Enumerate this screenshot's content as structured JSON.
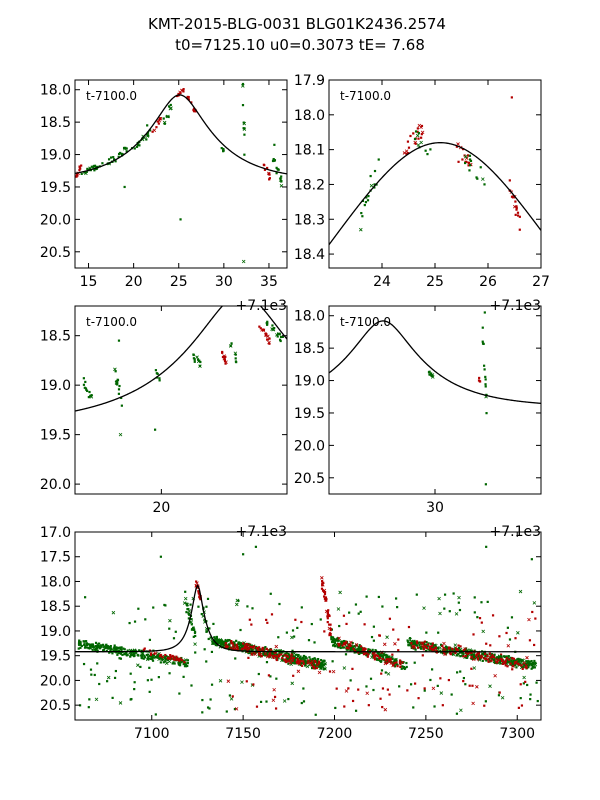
{
  "figure": {
    "title_line1": "KMT-2015-BLG-0031 BLG01K2436.2574",
    "title_line2": "t0=7125.10 u0=0.3073 tE=   7.68",
    "model": {
      "t0": 7125.1,
      "u0": 0.3073,
      "tE": 7.68,
      "base_mag": 19.42,
      "peak_mag": 18.08
    },
    "colors": {
      "red": "#b30000",
      "green": "#006600",
      "line": "#000000",
      "axes": "#000000"
    }
  },
  "chart_data": [
    {
      "name": "panel-top-left",
      "type": "scatter",
      "time_offset": 7100,
      "annotation": "t-7100.0",
      "offset_label": "+7.1e3",
      "xlim": [
        13.5,
        37
      ],
      "ylim": [
        20.75,
        17.85
      ],
      "xticks": [
        15,
        20,
        25,
        30,
        35
      ],
      "xtick_labels": [
        "15",
        "20",
        "25",
        "30",
        "35"
      ],
      "yticks": [
        18.0,
        18.5,
        19.0,
        19.5,
        20.0,
        20.5
      ],
      "ytick_labels": [
        "18.0",
        "18.5",
        "19.0",
        "19.5",
        "20.0",
        "20.5"
      ],
      "show_offset": true,
      "clusters": [
        {
          "x": [
            13.6,
            14.2
          ],
          "mag": [
            19.35,
            19.15
          ],
          "n": 10,
          "color": "red"
        },
        {
          "x": [
            14.0,
            16.8
          ],
          "mag": [
            19.3,
            19.15
          ],
          "n": 26,
          "color": "green"
        },
        {
          "x": [
            17.0,
            19.9
          ],
          "mag": [
            19.15,
            18.85
          ],
          "n": 22,
          "color": "green"
        },
        {
          "x": [
            20.0,
            22.0
          ],
          "mag": [
            18.9,
            18.65
          ],
          "n": 16,
          "color": "green"
        },
        {
          "x": [
            22.0,
            23.0
          ],
          "mag": [
            18.7,
            18.45
          ],
          "n": 10,
          "color": "red"
        },
        {
          "x": [
            23.3,
            24.6
          ],
          "mag": [
            18.5,
            18.15
          ],
          "n": 10,
          "color": "green"
        },
        {
          "x": [
            24.8,
            25.6
          ],
          "mag": [
            18.1,
            18.0
          ],
          "n": 10,
          "color": "red"
        },
        {
          "x": [
            25.8,
            26.9
          ],
          "mag": [
            18.1,
            18.35
          ],
          "n": 12,
          "color": "red"
        },
        {
          "x": [
            29.5,
            30.1
          ],
          "mag": [
            18.85,
            18.95
          ],
          "n": 5,
          "color": "green"
        },
        {
          "x": [
            32.1,
            32.4
          ],
          "mag": [
            18.0,
            19.4
          ],
          "n": 10,
          "color": "green"
        },
        {
          "x": [
            34.3,
            35.2
          ],
          "mag": [
            19.1,
            19.4
          ],
          "n": 10,
          "color": "red"
        },
        {
          "x": [
            35.3,
            36.4
          ],
          "mag": [
            19.0,
            19.4
          ],
          "n": 16,
          "color": "green"
        }
      ],
      "outliers": [
        {
          "x": 21.5,
          "mag": 18.55,
          "color": "green"
        },
        {
          "x": 25.2,
          "mag": 20.0,
          "color": "green"
        },
        {
          "x": 19.0,
          "mag": 19.5,
          "color": "green"
        },
        {
          "x": 32.2,
          "mag": 20.65,
          "color": "green"
        },
        {
          "x": 35.6,
          "mag": 18.85,
          "color": "green"
        }
      ]
    },
    {
      "name": "panel-top-right",
      "type": "scatter",
      "time_offset": 7100,
      "annotation": "t-7100.0",
      "offset_label": "+7.1e3",
      "xlim": [
        23.0,
        27.0
      ],
      "ylim": [
        18.44,
        17.9
      ],
      "xticks": [
        24,
        25,
        26,
        27
      ],
      "xtick_labels": [
        "24",
        "25",
        "26",
        "27"
      ],
      "yticks": [
        17.9,
        18.0,
        18.1,
        18.2,
        18.3,
        18.4
      ],
      "ytick_labels": [
        "17.9",
        "18.0",
        "18.1",
        "18.2",
        "18.3",
        "18.4"
      ],
      "show_offset": true,
      "clusters": [
        {
          "x": [
            23.6,
            23.95
          ],
          "mag": [
            18.3,
            18.15
          ],
          "n": 16,
          "color": "green"
        },
        {
          "x": [
            24.4,
            24.8
          ],
          "mag": [
            18.1,
            18.05
          ],
          "n": 20,
          "color": "red"
        },
        {
          "x": [
            24.6,
            24.95
          ],
          "mag": [
            18.07,
            18.12
          ],
          "n": 10,
          "color": "green"
        },
        {
          "x": [
            25.4,
            25.7
          ],
          "mag": [
            18.1,
            18.15
          ],
          "n": 16,
          "color": "red"
        },
        {
          "x": [
            25.55,
            25.95
          ],
          "mag": [
            18.12,
            18.18
          ],
          "n": 12,
          "color": "green"
        },
        {
          "x": [
            26.4,
            26.62
          ],
          "mag": [
            18.2,
            18.3
          ],
          "n": 16,
          "color": "red"
        }
      ],
      "outliers": [
        {
          "x": 23.6,
          "mag": 18.33,
          "color": "green"
        },
        {
          "x": 26.45,
          "mag": 17.95,
          "color": "red"
        },
        {
          "x": 26.6,
          "mag": 18.33,
          "color": "red"
        }
      ]
    },
    {
      "name": "panel-mid-left",
      "type": "scatter",
      "time_offset": 7100,
      "annotation": "t-7100.0",
      "offset_label": "+7.1e3",
      "xlim": [
        14.5,
        28.0
      ],
      "ylim": [
        20.1,
        18.2
      ],
      "xticks": [
        20
      ],
      "xtick_labels": [
        "20"
      ],
      "yticks": [
        18.5,
        19.0,
        19.5,
        20.0
      ],
      "ytick_labels": [
        "18.5",
        "19.0",
        "19.5",
        "20.0"
      ],
      "show_offset": true,
      "clusters": [
        {
          "x": [
            15.0,
            15.6
          ],
          "mag": [
            18.95,
            19.15
          ],
          "n": 12,
          "color": "green"
        },
        {
          "x": [
            17.0,
            17.5
          ],
          "mag": [
            18.85,
            19.15
          ],
          "n": 14,
          "color": "green"
        },
        {
          "x": [
            19.6,
            19.9
          ],
          "mag": [
            18.85,
            18.95
          ],
          "n": 6,
          "color": "green"
        },
        {
          "x": [
            22.0,
            22.5
          ],
          "mag": [
            18.7,
            18.8
          ],
          "n": 12,
          "color": "green"
        },
        {
          "x": [
            23.8,
            24.2
          ],
          "mag": [
            18.65,
            18.8
          ],
          "n": 12,
          "color": "red"
        },
        {
          "x": [
            24.4,
            24.8
          ],
          "mag": [
            18.6,
            18.75
          ],
          "n": 8,
          "color": "green"
        },
        {
          "x": [
            26.2,
            26.9
          ],
          "mag": [
            18.4,
            18.55
          ],
          "n": 16,
          "color": "red"
        },
        {
          "x": [
            26.6,
            27.8
          ],
          "mag": [
            18.35,
            18.55
          ],
          "n": 18,
          "color": "green"
        }
      ],
      "outliers": [
        {
          "x": 17.4,
          "mag": 19.5,
          "color": "green"
        },
        {
          "x": 19.6,
          "mag": 19.45,
          "color": "green"
        },
        {
          "x": 17.3,
          "mag": 18.55,
          "color": "green"
        }
      ]
    },
    {
      "name": "panel-mid-right",
      "type": "scatter",
      "time_offset": 7100,
      "annotation": "t-7100.0",
      "offset_label": "+7.1e3",
      "xlim": [
        20.0,
        40.0
      ],
      "ylim": [
        20.75,
        17.85
      ],
      "xticks": [
        30
      ],
      "xtick_labels": [
        "30"
      ],
      "yticks": [
        18.0,
        18.5,
        19.0,
        19.5,
        20.0,
        20.5
      ],
      "ytick_labels": [
        "18.0",
        "18.5",
        "19.0",
        "19.5",
        "20.0",
        "20.5"
      ],
      "show_offset": true,
      "clusters": [
        {
          "x": [
            29.3,
            29.9
          ],
          "mag": [
            18.85,
            18.95
          ],
          "n": 10,
          "color": "green"
        },
        {
          "x": [
            34.1,
            34.3
          ],
          "mag": [
            18.95,
            19.05
          ],
          "n": 4,
          "color": "red"
        },
        {
          "x": [
            34.5,
            34.9
          ],
          "mag": [
            18.3,
            19.4
          ],
          "n": 14,
          "color": "green"
        }
      ],
      "outliers": [
        {
          "x": 34.7,
          "mag": 17.95,
          "color": "green"
        },
        {
          "x": 34.8,
          "mag": 20.6,
          "color": "green"
        }
      ]
    },
    {
      "name": "panel-bottom",
      "type": "scatter",
      "time_offset": 0,
      "annotation": "",
      "offset_label": "",
      "xlim": [
        7058,
        7313
      ],
      "ylim": [
        20.8,
        17.0
      ],
      "xticks": [
        7100,
        7150,
        7200,
        7250,
        7300
      ],
      "xtick_labels": [
        "7100",
        "7150",
        "7200",
        "7250",
        "7300"
      ],
      "yticks": [
        17.0,
        17.5,
        18.0,
        18.5,
        19.0,
        19.5,
        20.0,
        20.5
      ],
      "ytick_labels": [
        "17.0",
        "17.5",
        "18.0",
        "18.5",
        "19.0",
        "19.5",
        "20.0",
        "20.5"
      ],
      "show_offset": false,
      "clusters": [
        {
          "x": [
            7060,
            7120
          ],
          "mag": [
            19.25,
            19.65
          ],
          "n": 260,
          "color": "green"
        },
        {
          "x": [
            7095,
            7118
          ],
          "mag": [
            19.4,
            19.6
          ],
          "n": 30,
          "color": "red"
        },
        {
          "x": [
            7118,
            7124
          ],
          "mag": [
            18.3,
            19.2
          ],
          "n": 30,
          "color": "green"
        },
        {
          "x": [
            7124,
            7127
          ],
          "mag": [
            18.0,
            18.4
          ],
          "n": 20,
          "color": "red"
        },
        {
          "x": [
            7127,
            7133
          ],
          "mag": [
            18.5,
            19.3
          ],
          "n": 16,
          "color": "green"
        },
        {
          "x": [
            7133,
            7195
          ],
          "mag": [
            19.2,
            19.7
          ],
          "n": 420,
          "color": "green"
        },
        {
          "x": [
            7140,
            7192
          ],
          "mag": [
            19.25,
            19.7
          ],
          "n": 120,
          "color": "red"
        },
        {
          "x": [
            7193,
            7198
          ],
          "mag": [
            18.0,
            19.0
          ],
          "n": 40,
          "color": "red"
        },
        {
          "x": [
            7198,
            7240
          ],
          "mag": [
            19.2,
            19.7
          ],
          "n": 220,
          "color": "green"
        },
        {
          "x": [
            7200,
            7238
          ],
          "mag": [
            19.2,
            19.7
          ],
          "n": 70,
          "color": "red"
        },
        {
          "x": [
            7240,
            7310
          ],
          "mag": [
            19.25,
            19.7
          ],
          "n": 360,
          "color": "green"
        },
        {
          "x": [
            7242,
            7306
          ],
          "mag": [
            19.25,
            19.7
          ],
          "n": 120,
          "color": "red"
        }
      ],
      "scatter_extra": [
        {
          "x": [
            7060,
            7312
          ],
          "mag": [
            18.2,
            20.7
          ],
          "n": 220,
          "color": "green"
        },
        {
          "x": [
            7140,
            7310
          ],
          "mag": [
            18.6,
            20.6
          ],
          "n": 110,
          "color": "red"
        }
      ],
      "outliers": [
        {
          "x": 7150,
          "mag": 17.45,
          "color": "green"
        },
        {
          "x": 7157,
          "mag": 17.3,
          "color": "green"
        },
        {
          "x": 7283,
          "mag": 17.3,
          "color": "green"
        },
        {
          "x": 7308,
          "mag": 17.55,
          "color": "green"
        },
        {
          "x": 7105,
          "mag": 17.5,
          "color": "green"
        }
      ]
    }
  ]
}
